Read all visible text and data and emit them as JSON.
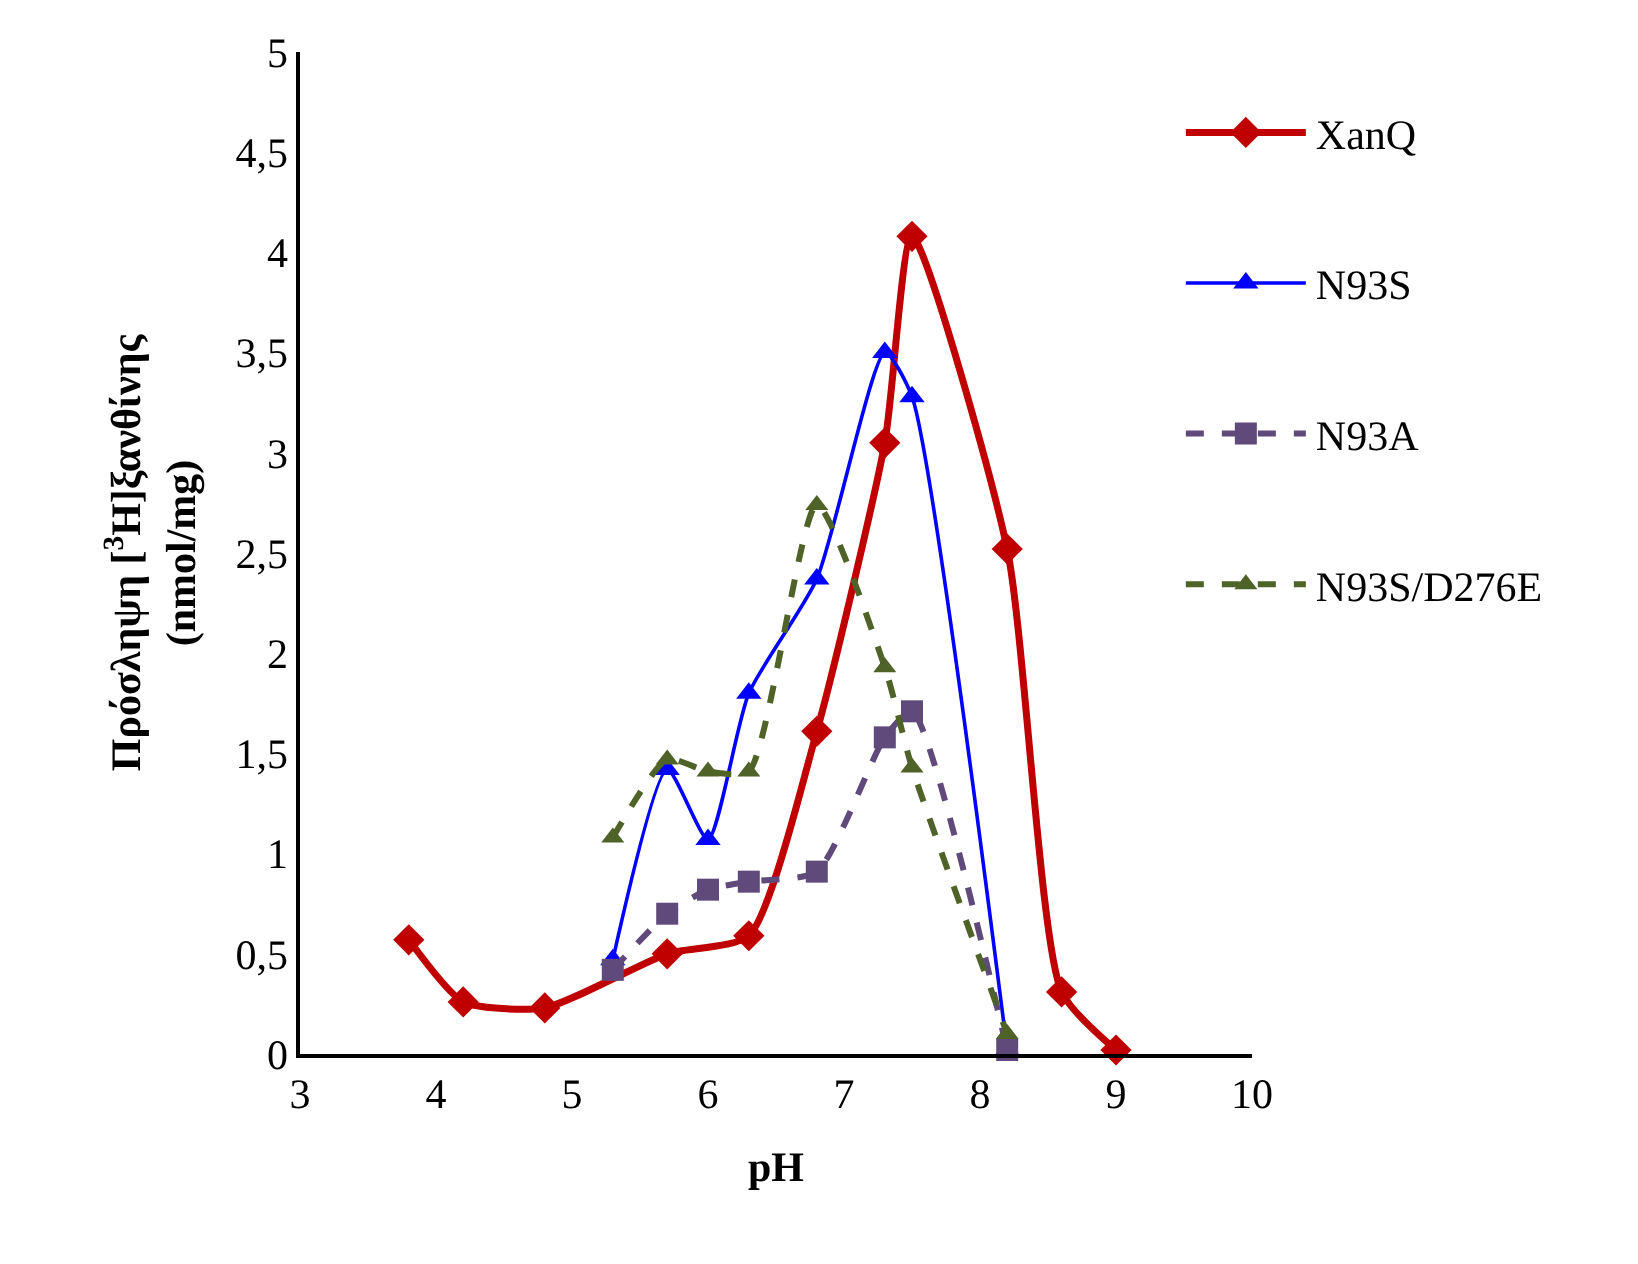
{
  "chart_data": {
    "type": "line",
    "xlabel": "pH",
    "ylabel": "Πρόσληψη [$^{3}$H]ξανθίνης\n(nmol/mg)",
    "xlim": [
      3,
      10
    ],
    "xticks": [
      3,
      4,
      5,
      6,
      7,
      8,
      9,
      10
    ],
    "ylim": [
      0,
      5
    ],
    "yticks": [
      0,
      {
        "value": 0.5,
        "label": "0,5"
      },
      1,
      {
        "value": 1.5,
        "label": "1,5"
      },
      2,
      {
        "value": 2.5,
        "label": "2,5"
      },
      3,
      {
        "value": 3.5,
        "label": "3,5"
      },
      4,
      {
        "value": 4.5,
        "label": "4,5"
      },
      5
    ],
    "legend": "top right",
    "series": [
      {
        "name": "XanQ",
        "color": "#c00000",
        "marker": "diamond",
        "line_style": "solid",
        "x": [
          3.8,
          4.2,
          4.8,
          5.7,
          6.3,
          6.8,
          7.3,
          7.5,
          8.2,
          8.6,
          9.0
        ],
        "values": [
          0.57,
          0.26,
          0.23,
          0.5,
          0.59,
          1.61,
          3.05,
          4.08,
          2.52,
          0.31,
          0.02
        ]
      },
      {
        "name": "N93S",
        "color": "#0000ff",
        "marker": "triangle",
        "line_style": "solid",
        "x": [
          5.3,
          5.7,
          6.0,
          6.3,
          6.8,
          7.3,
          7.5,
          8.2
        ],
        "values": [
          0.47,
          1.42,
          1.07,
          1.8,
          2.37,
          3.5,
          3.28,
          0.02
        ]
      },
      {
        "name": "N93A",
        "color": "#604a7b",
        "marker": "square",
        "line_style": "dashed",
        "x": [
          5.3,
          5.7,
          6.0,
          6.3,
          6.8,
          7.3,
          7.5,
          8.2
        ],
        "values": [
          0.42,
          0.7,
          0.82,
          0.86,
          0.91,
          1.58,
          1.71,
          0.02
        ]
      },
      {
        "name": "N93S/D276E",
        "color": "#4f6228",
        "marker": "triangle",
        "line_style": "dashed",
        "x": [
          5.3,
          5.7,
          6.0,
          6.3,
          6.8,
          7.3,
          7.5,
          8.2
        ],
        "values": [
          1.08,
          1.47,
          1.41,
          1.41,
          2.74,
          1.93,
          1.43,
          0.1
        ]
      }
    ]
  }
}
